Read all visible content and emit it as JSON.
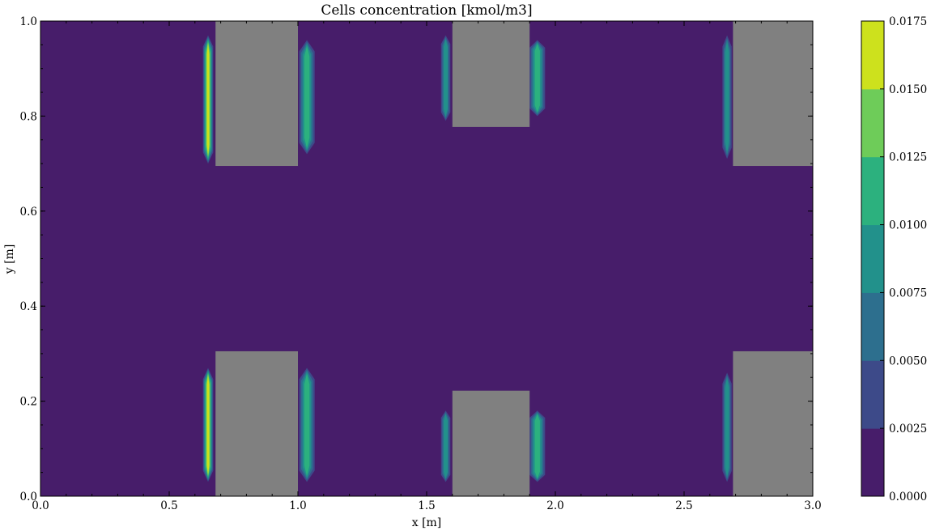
{
  "chart_data": {
    "type": "heatmap",
    "title": "Cells concentration [kmol/m3]",
    "xlabel": "x [m]",
    "ylabel": "y [m]",
    "xlim": [
      0,
      3
    ],
    "ylim": [
      0,
      1
    ],
    "xticks": [
      "0.0",
      "0.5",
      "1.0",
      "1.5",
      "2.0",
      "2.5",
      "3.0"
    ],
    "yticks": [
      "0.0",
      "0.2",
      "0.4",
      "0.6",
      "0.8",
      "1.0"
    ],
    "colorbar": {
      "ticks": [
        "0.0000",
        "0.0025",
        "0.0050",
        "0.0075",
        "0.0100",
        "0.0125",
        "0.0150",
        "0.0175"
      ],
      "range": [
        0,
        0.0175
      ],
      "level_colors": [
        "#471d6a",
        "#3d4a89",
        "#2d6f8e",
        "#22918b",
        "#2cb17e",
        "#6ecc59",
        "#cde11d"
      ]
    },
    "background_value": 0.0,
    "obstacle_color": "#808080",
    "obstacles": [
      {
        "x0": 0.68,
        "x1": 1.0,
        "y0": 0.695,
        "y1": 1.0
      },
      {
        "x0": 0.68,
        "x1": 1.0,
        "y0": 0.0,
        "y1": 0.305
      },
      {
        "x0": 1.6,
        "x1": 1.9,
        "y0": 0.777,
        "y1": 1.0
      },
      {
        "x0": 1.6,
        "x1": 1.9,
        "y0": 0.0,
        "y1": 0.222
      },
      {
        "x0": 2.69,
        "x1": 3.0,
        "y0": 0.695,
        "y1": 1.0
      },
      {
        "x0": 2.69,
        "x1": 3.0,
        "y0": 0.0,
        "y1": 0.305
      }
    ],
    "hotspots": [
      {
        "xc": 0.651,
        "hw": 0.02,
        "y0": 0.7,
        "y1": 0.97,
        "peak": 0.016
      },
      {
        "xc": 0.651,
        "hw": 0.02,
        "y0": 0.03,
        "y1": 0.27,
        "peak": 0.016
      },
      {
        "xc": 1.035,
        "hw": 0.03,
        "y0": 0.72,
        "y1": 0.96,
        "peak": 0.011
      },
      {
        "xc": 1.035,
        "hw": 0.03,
        "y0": 0.03,
        "y1": 0.27,
        "peak": 0.011
      },
      {
        "xc": 1.574,
        "hw": 0.018,
        "y0": 0.79,
        "y1": 0.97,
        "peak": 0.009
      },
      {
        "xc": 1.574,
        "hw": 0.018,
        "y0": 0.03,
        "y1": 0.18,
        "peak": 0.009
      },
      {
        "xc": 1.93,
        "hw": 0.03,
        "y0": 0.8,
        "y1": 0.96,
        "peak": 0.011
      },
      {
        "xc": 1.93,
        "hw": 0.03,
        "y0": 0.03,
        "y1": 0.18,
        "peak": 0.011
      },
      {
        "xc": 2.667,
        "hw": 0.018,
        "y0": 0.71,
        "y1": 0.97,
        "peak": 0.009
      },
      {
        "xc": 2.667,
        "hw": 0.018,
        "y0": 0.03,
        "y1": 0.26,
        "peak": 0.009
      }
    ]
  }
}
